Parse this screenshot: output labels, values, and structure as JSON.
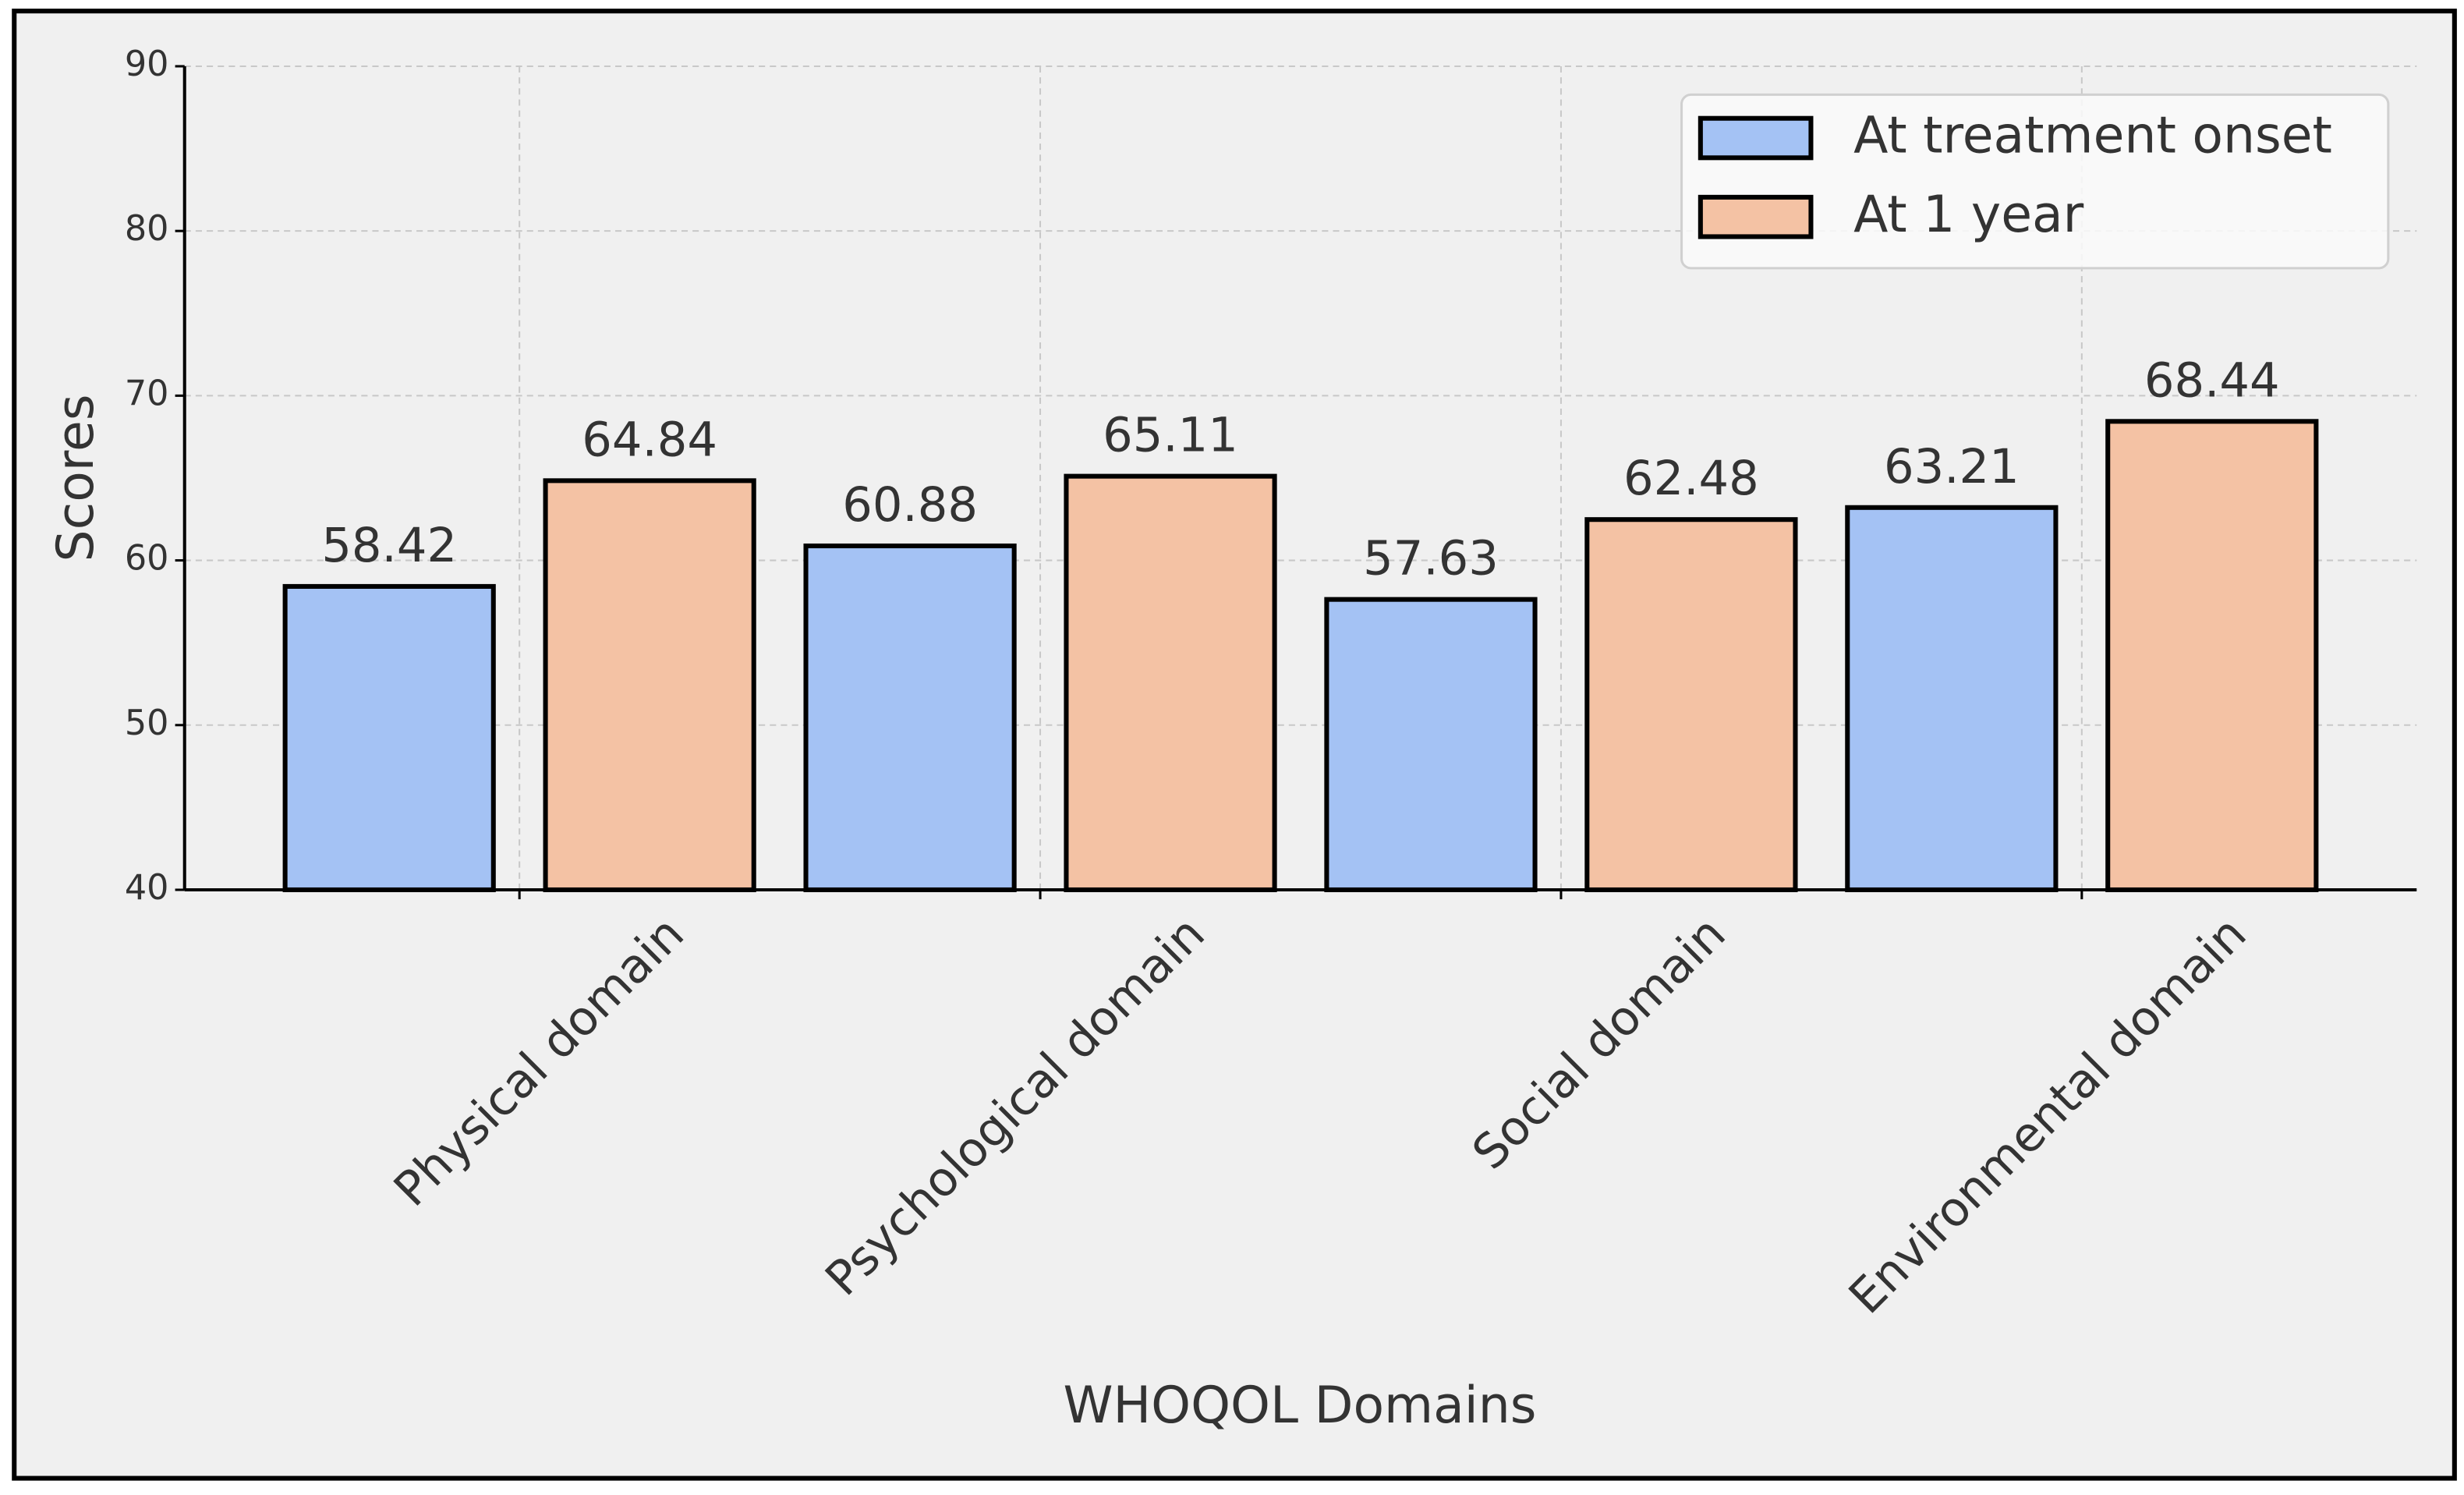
{
  "chart_data": {
    "type": "bar",
    "x_label": "WHOQOL Domains",
    "y_label": "Scores",
    "categories": [
      "Physical domain",
      "Psychological domain",
      "Social domain",
      "Environmental domain"
    ],
    "series": [
      {
        "name": "At treatment onset",
        "color": "#a4c2f4",
        "values": [
          58.42,
          60.88,
          57.63,
          63.21
        ]
      },
      {
        "name": "At 1 year",
        "color": "#f4c2a4",
        "values": [
          64.84,
          65.11,
          62.48,
          68.44
        ]
      }
    ],
    "ylim": [
      40,
      90
    ],
    "yticks": [
      40,
      50,
      60,
      70,
      80,
      90
    ],
    "grid": true,
    "legend": "upper right"
  }
}
